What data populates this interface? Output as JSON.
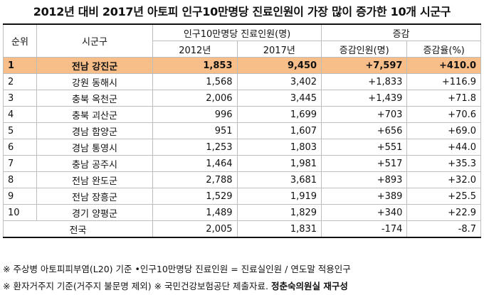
{
  "title": "2012년 대비 2017년 아토피 인구10만명당 진료인원이 가장 많이 증가한 10개 시군구",
  "headers": {
    "rank": "순위",
    "region": "시군구",
    "patients": "인구10만명당 진료인원(명)",
    "change": "증감",
    "y2012": "2012년",
    "y2017": "2017년",
    "change_count": "증감인원(명)",
    "change_rate": "증감율(%)"
  },
  "rows": [
    {
      "rank": "1",
      "region": "전남 강진군",
      "y2012": "1,853",
      "y2017": "9,450",
      "diff": "+7,597",
      "rate": "+410.0"
    },
    {
      "rank": "2",
      "region": "강원 동해시",
      "y2012": "1,568",
      "y2017": "3,402",
      "diff": "+1,833",
      "rate": "+116.9"
    },
    {
      "rank": "3",
      "region": "충북 옥천군",
      "y2012": "2,006",
      "y2017": "3,445",
      "diff": "+1,439",
      "rate": "+71.8"
    },
    {
      "rank": "4",
      "region": "충북 괴산군",
      "y2012": "996",
      "y2017": "1,699",
      "diff": "+703",
      "rate": "+70.6"
    },
    {
      "rank": "5",
      "region": "경남 함양군",
      "y2012": "951",
      "y2017": "1,607",
      "diff": "+656",
      "rate": "+69.0"
    },
    {
      "rank": "6",
      "region": "경남 통영시",
      "y2012": "1,253",
      "y2017": "1,803",
      "diff": "+551",
      "rate": "+44.0"
    },
    {
      "rank": "7",
      "region": "충남 공주시",
      "y2012": "1,464",
      "y2017": "1,981",
      "diff": "+517",
      "rate": "+35.3"
    },
    {
      "rank": "8",
      "region": "전남 완도군",
      "y2012": "2,788",
      "y2017": "3,681",
      "diff": "+893",
      "rate": "+32.0"
    },
    {
      "rank": "9",
      "region": "전남 장흥군",
      "y2012": "1,529",
      "y2017": "1,919",
      "diff": "+389",
      "rate": "+25.5"
    },
    {
      "rank": "10",
      "region": "경기 양평군",
      "y2012": "1,489",
      "y2017": "1,829",
      "diff": "+340",
      "rate": "+22.9"
    }
  ],
  "total": {
    "label": "전국",
    "y2012": "2,005",
    "y2017": "1,831",
    "diff": "-174",
    "rate": "-8.7"
  },
  "notes": {
    "line1": "※ 주상병 아토피피부염(L20) 기준  •인구10만명당 진료인원 = 진료실인원 / 연도말 적용인구",
    "line2_a": "※ 환자거주지 기준(거주지 불문명 제외) ※ 국민건강보험공단 제출자료. ",
    "line2_b": "정춘숙의원실 재구성"
  },
  "colors": {
    "highlight": "#f7be8a"
  }
}
